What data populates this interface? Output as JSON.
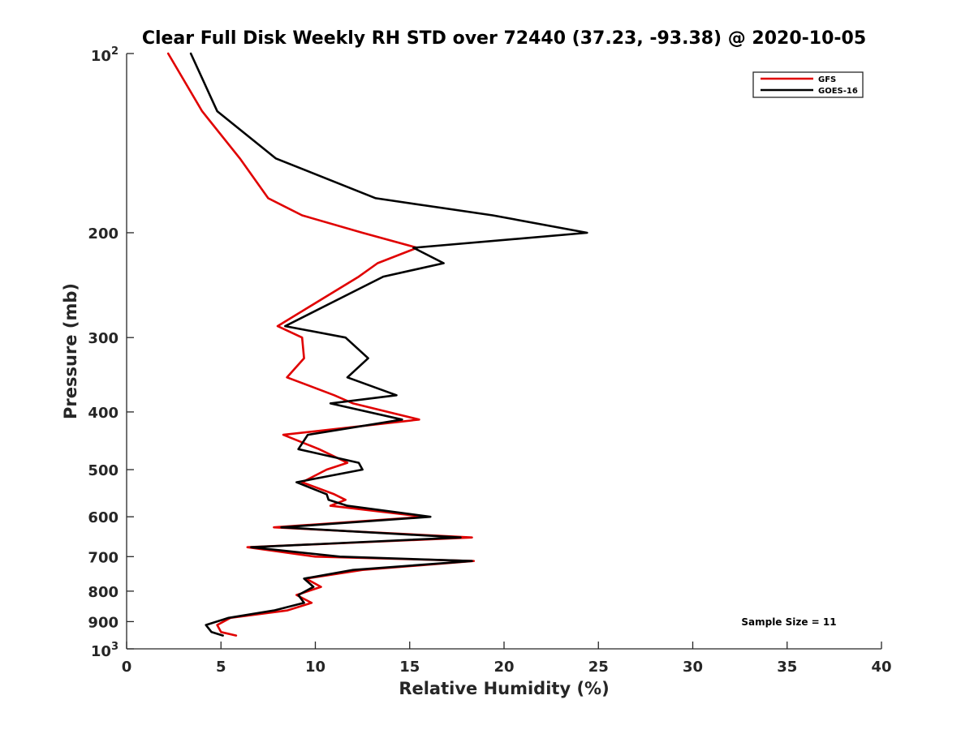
{
  "chart_data": {
    "type": "line",
    "title": "Clear Full Disk Weekly RH STD over 72440 (37.23, -93.38) @ 2020-10-05",
    "xlabel": "Relative Humidity (%)",
    "ylabel": "Pressure (mb)",
    "xlim": [
      0,
      40
    ],
    "ylim": [
      100,
      1000
    ],
    "y_scale": "log",
    "y_reversed": true,
    "x_ticks": [
      "0",
      "5",
      "10",
      "15",
      "20",
      "25",
      "30",
      "35",
      "40"
    ],
    "y_ticks": [
      {
        "value": 100,
        "base": "10",
        "exp": "2"
      },
      {
        "value": 200,
        "label": "200"
      },
      {
        "value": 300,
        "label": "300"
      },
      {
        "value": 400,
        "label": "400"
      },
      {
        "value": 500,
        "label": "500"
      },
      {
        "value": 600,
        "label": "600"
      },
      {
        "value": 700,
        "label": "700"
      },
      {
        "value": 800,
        "label": "800"
      },
      {
        "value": 900,
        "label": "900"
      },
      {
        "value": 1000,
        "base": "10",
        "exp": "3"
      }
    ],
    "legend_position": "top-right",
    "grid": false,
    "annotation": "Sample Size = 11",
    "series": [
      {
        "name": "GFS",
        "color": "#e00000",
        "points": [
          [
            2.2,
            100
          ],
          [
            4.0,
            125
          ],
          [
            6.0,
            150
          ],
          [
            7.5,
            175
          ],
          [
            9.3,
            187
          ],
          [
            12.5,
            200
          ],
          [
            15.4,
            212
          ],
          [
            13.3,
            225
          ],
          [
            12.3,
            237
          ],
          [
            8.0,
            287
          ],
          [
            9.3,
            300
          ],
          [
            9.4,
            325
          ],
          [
            8.5,
            350
          ],
          [
            11.0,
            375
          ],
          [
            12.0,
            387
          ],
          [
            15.5,
            412
          ],
          [
            8.3,
            437
          ],
          [
            10.2,
            462
          ],
          [
            11.7,
            487
          ],
          [
            10.6,
            500
          ],
          [
            9.3,
            525
          ],
          [
            11.0,
            550
          ],
          [
            11.6,
            562
          ],
          [
            10.8,
            575
          ],
          [
            15.8,
            600
          ],
          [
            7.8,
            625
          ],
          [
            18.3,
            650
          ],
          [
            6.4,
            675
          ],
          [
            10.0,
            700
          ],
          [
            18.4,
            712
          ],
          [
            12.5,
            737
          ],
          [
            9.5,
            762
          ],
          [
            10.3,
            787
          ],
          [
            9.0,
            812
          ],
          [
            9.8,
            837
          ],
          [
            8.5,
            862
          ],
          [
            5.5,
            887
          ],
          [
            4.8,
            912
          ],
          [
            5.0,
            937
          ],
          [
            5.8,
            950
          ]
        ]
      },
      {
        "name": "GOES-16",
        "color": "#000000",
        "points": [
          [
            3.4,
            100
          ],
          [
            4.8,
            125
          ],
          [
            7.9,
            150
          ],
          [
            13.2,
            175
          ],
          [
            19.4,
            187
          ],
          [
            24.4,
            200
          ],
          [
            15.2,
            212
          ],
          [
            16.8,
            225
          ],
          [
            13.6,
            237
          ],
          [
            8.4,
            287
          ],
          [
            11.6,
            300
          ],
          [
            12.8,
            325
          ],
          [
            11.7,
            350
          ],
          [
            14.3,
            375
          ],
          [
            10.8,
            387
          ],
          [
            14.6,
            412
          ],
          [
            9.6,
            437
          ],
          [
            9.1,
            462
          ],
          [
            12.3,
            487
          ],
          [
            12.5,
            500
          ],
          [
            9.0,
            525
          ],
          [
            10.6,
            550
          ],
          [
            10.7,
            562
          ],
          [
            11.7,
            575
          ],
          [
            16.1,
            600
          ],
          [
            8.2,
            625
          ],
          [
            17.7,
            650
          ],
          [
            6.6,
            675
          ],
          [
            11.3,
            700
          ],
          [
            18.3,
            712
          ],
          [
            12.0,
            737
          ],
          [
            9.4,
            762
          ],
          [
            9.9,
            787
          ],
          [
            9.1,
            812
          ],
          [
            9.4,
            837
          ],
          [
            7.8,
            862
          ],
          [
            5.4,
            887
          ],
          [
            4.2,
            912
          ],
          [
            4.5,
            937
          ],
          [
            5.1,
            950
          ]
        ]
      }
    ]
  }
}
